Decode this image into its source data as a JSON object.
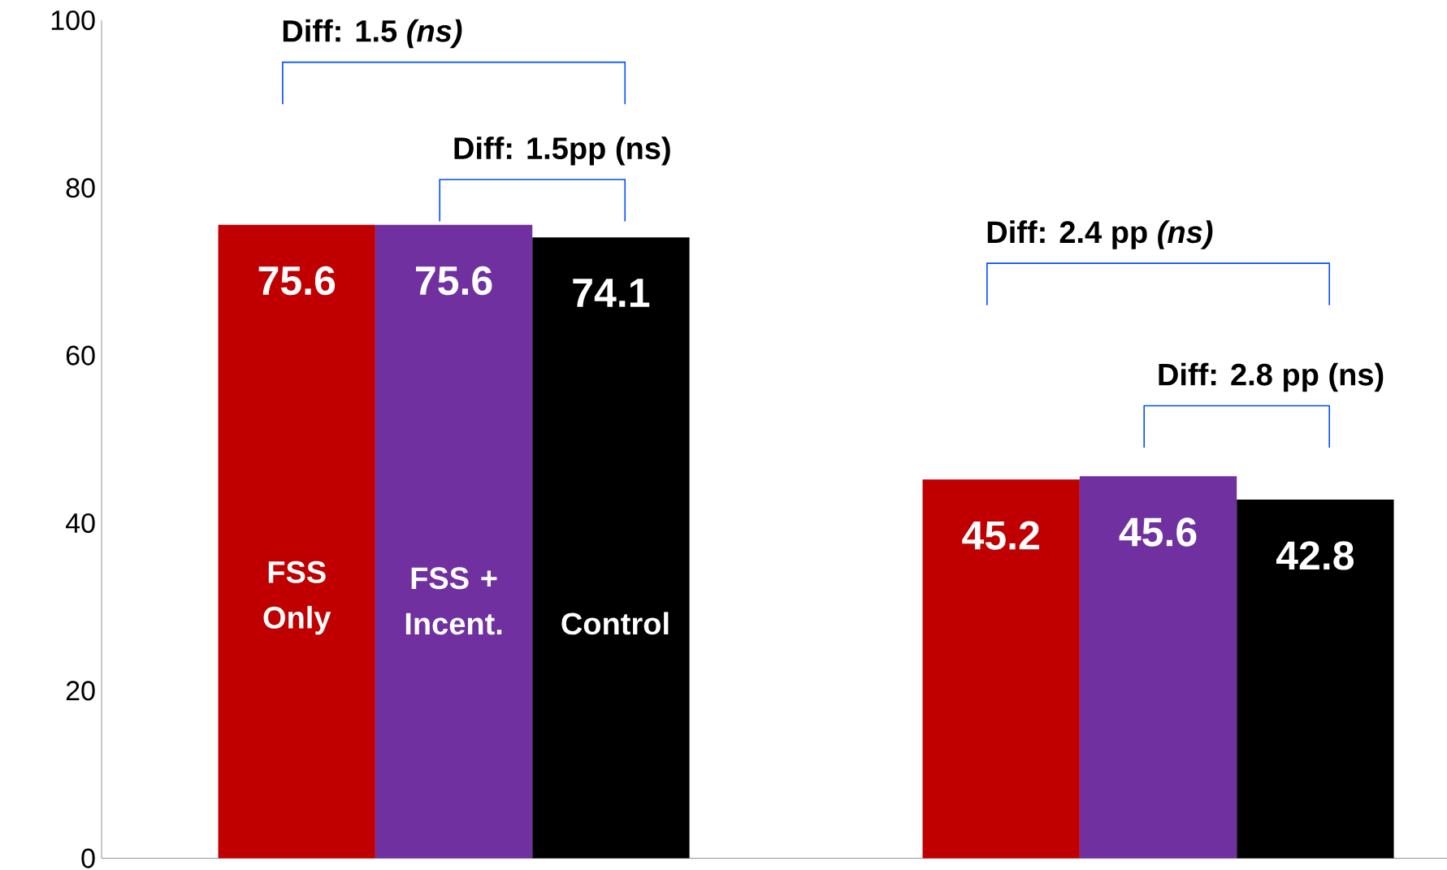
{
  "chart_data": {
    "type": "bar",
    "categories": [
      null,
      null
    ],
    "series": [
      {
        "name": "FSS Only",
        "color": "#c00000",
        "values": [
          75.6,
          45.2
        ]
      },
      {
        "name": "FSS + Incent.",
        "color": "#7030a0",
        "values": [
          75.6,
          45.6
        ]
      },
      {
        "name": "Control",
        "color": "#000000",
        "values": [
          74.1,
          42.8
        ]
      }
    ],
    "ylim": [
      0,
      100
    ],
    "yticks": [
      0,
      20,
      40,
      60,
      80,
      100
    ],
    "data_labels": true,
    "annotations": [
      "Diff:  1.5 *(ns)*",
      "Diff:  1.5pp (ns)",
      "Diff: 2.4 pp *(ns)*",
      "Diff: 2.8 pp (ns)"
    ]
  }
}
